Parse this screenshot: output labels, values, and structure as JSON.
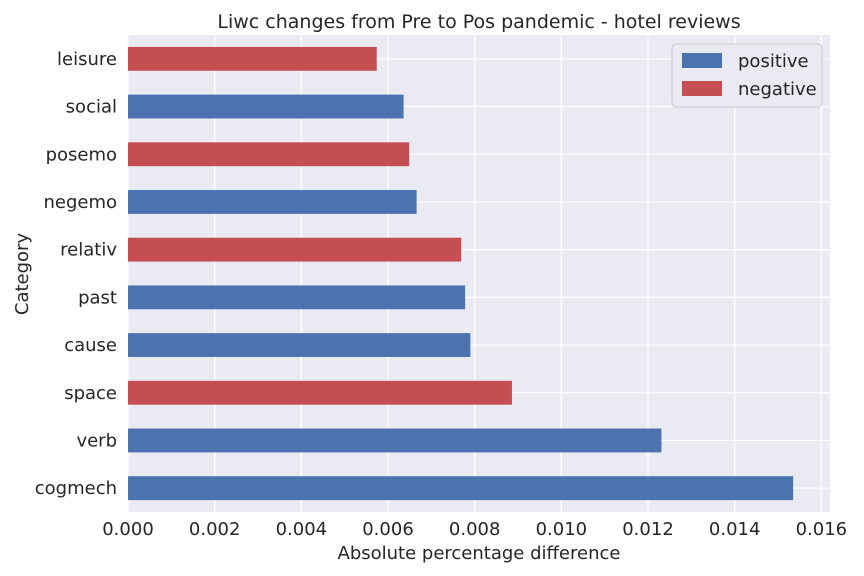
{
  "chart_data": {
    "type": "bar",
    "orientation": "horizontal",
    "title": "Liwc changes from Pre to Pos pandemic - hotel reviews",
    "xlabel": "Absolute percentage difference",
    "ylabel": "Category",
    "xlim": [
      0,
      0.0162
    ],
    "xticks": [
      "0.000",
      "0.002",
      "0.004",
      "0.006",
      "0.008",
      "0.010",
      "0.012",
      "0.014",
      "0.016"
    ],
    "grid": true,
    "legend_position": "top-right",
    "categories": [
      "leisure",
      "social",
      "posemo",
      "negemo",
      "relativ",
      "past",
      "cause",
      "space",
      "verb",
      "cogmech"
    ],
    "values": [
      0.00574,
      0.00636,
      0.00649,
      0.00666,
      0.00769,
      0.00778,
      0.0079,
      0.00886,
      0.01231,
      0.01535
    ],
    "direction": [
      "negative",
      "positive",
      "negative",
      "positive",
      "negative",
      "positive",
      "positive",
      "negative",
      "positive",
      "positive"
    ],
    "legend": [
      {
        "name": "positive",
        "color": "#4c72b0"
      },
      {
        "name": "negative",
        "color": "#c44e52"
      }
    ],
    "colors": {
      "positive": "#4c72b0",
      "negative": "#c44e52",
      "plot_background": "#eaeaf2",
      "grid": "#ffffff"
    }
  }
}
